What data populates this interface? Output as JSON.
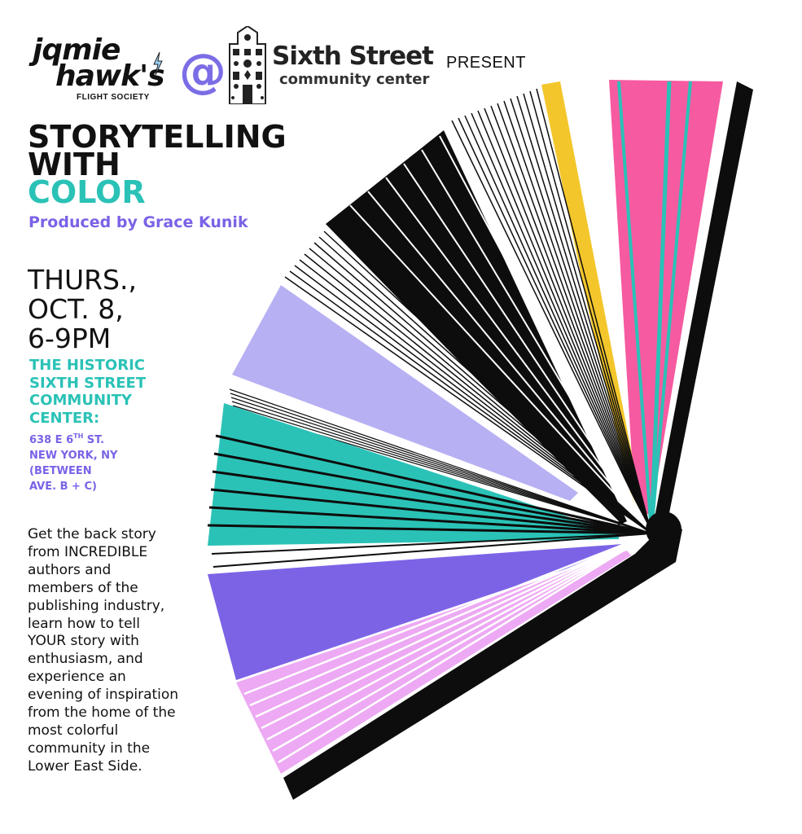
{
  "header": {
    "jamie_line1": "jqmie",
    "jamie_line2": "hawk's",
    "jamie_sub": "FLIGHT SOCIETY",
    "at": "@",
    "sixth_title": "Sixth Street",
    "sixth_sub": "community center",
    "present": "PRESENT"
  },
  "title": {
    "line1": "STORYTELLING",
    "line2": "WITH",
    "line3": "COLOR"
  },
  "produced_by": "Produced by Grace Kunik",
  "when": {
    "line1": "THURS.,",
    "line2": "OCT. 8,",
    "line3": "6-9PM"
  },
  "venue": [
    "THE HISTORIC",
    "SIXTH STREET",
    "COMMUNITY",
    "CENTER:"
  ],
  "address": {
    "line1_pre": "638 E 6",
    "line1_sup": "TH",
    "line1_post": " ST.",
    "line2": "NEW YORK, NY",
    "line3": "(BETWEEN",
    "line4": "AVE. B + C)"
  },
  "description": [
    "Get the back story",
    "from INCREDIBLE",
    "authors and",
    "members of the",
    "publishing industry,",
    "learn how to tell",
    "YOUR story with",
    "enthusiasm, and",
    "experience an",
    "evening of inspiration",
    "from the home of the",
    "most colorful",
    "community in the",
    "Lower East Side."
  ],
  "colors": {
    "teal": "#2ac2b6",
    "purple_text": "#7b62e6",
    "lavender": "#b7b0f3",
    "violet": "#7c63e6",
    "pink_light": "#eda9f3",
    "hot_pink": "#f65aa1",
    "yellow": "#f3c62b",
    "black": "#0d0d0d"
  }
}
